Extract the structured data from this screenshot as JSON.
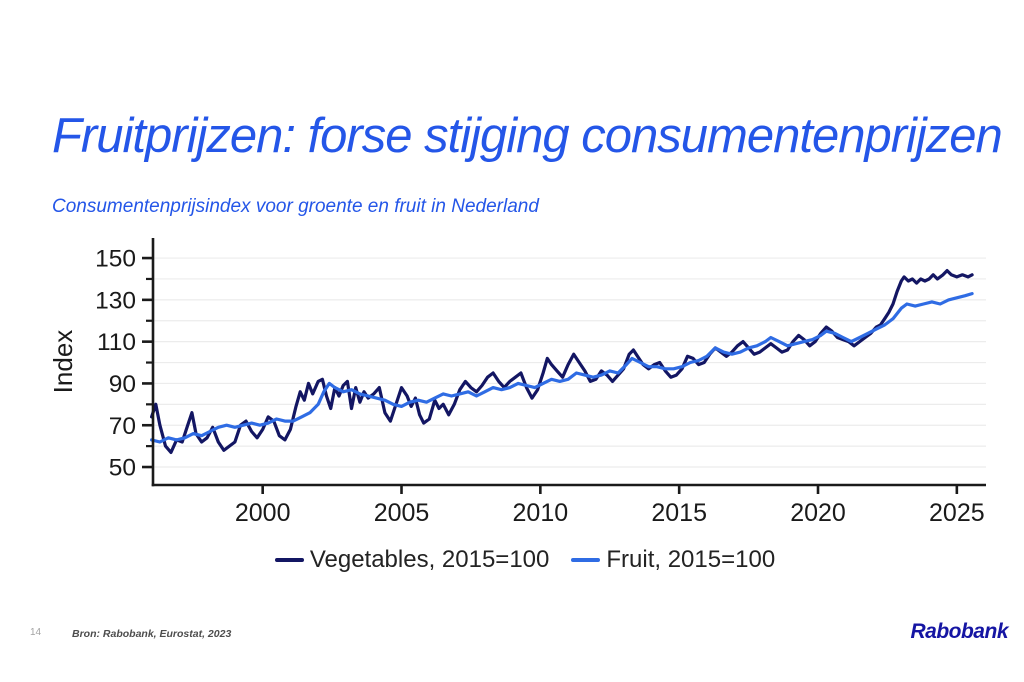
{
  "slide": {
    "title": "Fruitprijzen: forse stijging consumentenprijzen",
    "subtitle": "Consumentenprijsindex voor groente en fruit in Nederland",
    "page_number": "14",
    "source": "Bron: Rabobank, Eurostat, 2023",
    "logo": "Rabobank"
  },
  "colors": {
    "title_blue": "#2456e8",
    "axis": "#1a1a1a",
    "grid": "#ececec",
    "vegetables": "#131663",
    "fruit": "#2f6ce4",
    "logo_blue": "#1515a3"
  },
  "chart_data": {
    "type": "line",
    "title": "",
    "xlabel": "",
    "ylabel": "Index",
    "x_domain": [
      1996.05,
      2026.05
    ],
    "y_domain": [
      41.4,
      159.6
    ],
    "x_ticks": [
      2000,
      2005,
      2010,
      2015,
      2020,
      2025
    ],
    "y_ticks_major": [
      50,
      70,
      90,
      110,
      130,
      150
    ],
    "y_ticks_minor": [
      60,
      80,
      100,
      120,
      140
    ],
    "grid_values": [
      50,
      60,
      70,
      80,
      90,
      100,
      110,
      120,
      130,
      140,
      150
    ],
    "grid": true,
    "legend_position": "bottom",
    "series": [
      {
        "name": "Vegetables, 2015=100",
        "color": "#131663",
        "points": [
          [
            1996.0,
            74
          ],
          [
            1996.15,
            80
          ],
          [
            1996.3,
            70
          ],
          [
            1996.5,
            60
          ],
          [
            1996.7,
            57
          ],
          [
            1996.9,
            63
          ],
          [
            1997.1,
            62
          ],
          [
            1997.3,
            70
          ],
          [
            1997.45,
            76
          ],
          [
            1997.6,
            66
          ],
          [
            1997.8,
            62
          ],
          [
            1998.0,
            64
          ],
          [
            1998.2,
            69
          ],
          [
            1998.4,
            62
          ],
          [
            1998.6,
            58
          ],
          [
            1998.8,
            60
          ],
          [
            1999.0,
            62
          ],
          [
            1999.2,
            70
          ],
          [
            1999.4,
            72
          ],
          [
            1999.6,
            67
          ],
          [
            1999.8,
            64
          ],
          [
            2000.0,
            68
          ],
          [
            2000.2,
            74
          ],
          [
            2000.4,
            72
          ],
          [
            2000.6,
            65
          ],
          [
            2000.8,
            63
          ],
          [
            2001.0,
            68
          ],
          [
            2001.2,
            79
          ],
          [
            2001.35,
            86
          ],
          [
            2001.5,
            82
          ],
          [
            2001.65,
            90
          ],
          [
            2001.8,
            85
          ],
          [
            2002.0,
            91
          ],
          [
            2002.15,
            92
          ],
          [
            2002.3,
            84
          ],
          [
            2002.45,
            78
          ],
          [
            2002.6,
            88
          ],
          [
            2002.75,
            84
          ],
          [
            2002.9,
            89
          ],
          [
            2003.05,
            91
          ],
          [
            2003.2,
            78
          ],
          [
            2003.35,
            88
          ],
          [
            2003.5,
            81
          ],
          [
            2003.65,
            86
          ],
          [
            2003.8,
            83
          ],
          [
            2004.0,
            85
          ],
          [
            2004.2,
            88
          ],
          [
            2004.4,
            76
          ],
          [
            2004.6,
            72
          ],
          [
            2004.8,
            80
          ],
          [
            2005.0,
            88
          ],
          [
            2005.2,
            84
          ],
          [
            2005.35,
            79
          ],
          [
            2005.5,
            83
          ],
          [
            2005.65,
            75
          ],
          [
            2005.8,
            71
          ],
          [
            2006.0,
            73
          ],
          [
            2006.2,
            82
          ],
          [
            2006.35,
            78
          ],
          [
            2006.5,
            80
          ],
          [
            2006.7,
            75
          ],
          [
            2006.9,
            80
          ],
          [
            2007.1,
            87
          ],
          [
            2007.3,
            91
          ],
          [
            2007.5,
            88
          ],
          [
            2007.7,
            86
          ],
          [
            2007.9,
            89
          ],
          [
            2008.1,
            93
          ],
          [
            2008.3,
            95
          ],
          [
            2008.5,
            91
          ],
          [
            2008.7,
            88
          ],
          [
            2008.9,
            91
          ],
          [
            2009.1,
            93
          ],
          [
            2009.3,
            95
          ],
          [
            2009.5,
            88
          ],
          [
            2009.7,
            83
          ],
          [
            2009.9,
            87
          ],
          [
            2010.1,
            95
          ],
          [
            2010.25,
            102
          ],
          [
            2010.4,
            99
          ],
          [
            2010.6,
            96
          ],
          [
            2010.8,
            93
          ],
          [
            2011.0,
            99
          ],
          [
            2011.2,
            104
          ],
          [
            2011.4,
            100
          ],
          [
            2011.6,
            96
          ],
          [
            2011.8,
            91
          ],
          [
            2012.0,
            92
          ],
          [
            2012.2,
            96
          ],
          [
            2012.4,
            94
          ],
          [
            2012.6,
            91
          ],
          [
            2012.8,
            94
          ],
          [
            2013.0,
            97
          ],
          [
            2013.2,
            104
          ],
          [
            2013.35,
            106
          ],
          [
            2013.5,
            103
          ],
          [
            2013.7,
            99
          ],
          [
            2013.9,
            97
          ],
          [
            2014.1,
            99
          ],
          [
            2014.3,
            100
          ],
          [
            2014.5,
            96
          ],
          [
            2014.7,
            93
          ],
          [
            2014.9,
            94
          ],
          [
            2015.1,
            97
          ],
          [
            2015.3,
            103
          ],
          [
            2015.5,
            102
          ],
          [
            2015.7,
            99
          ],
          [
            2015.9,
            100
          ],
          [
            2016.1,
            104
          ],
          [
            2016.3,
            107
          ],
          [
            2016.5,
            105
          ],
          [
            2016.7,
            103
          ],
          [
            2016.9,
            105
          ],
          [
            2017.1,
            108
          ],
          [
            2017.3,
            110
          ],
          [
            2017.5,
            107
          ],
          [
            2017.7,
            104
          ],
          [
            2017.9,
            105
          ],
          [
            2018.1,
            107
          ],
          [
            2018.3,
            109
          ],
          [
            2018.5,
            107
          ],
          [
            2018.7,
            105
          ],
          [
            2018.9,
            106
          ],
          [
            2019.1,
            110
          ],
          [
            2019.3,
            113
          ],
          [
            2019.5,
            111
          ],
          [
            2019.7,
            108
          ],
          [
            2019.9,
            110
          ],
          [
            2020.1,
            114
          ],
          [
            2020.3,
            117
          ],
          [
            2020.5,
            115
          ],
          [
            2020.7,
            112
          ],
          [
            2020.9,
            111
          ],
          [
            2021.1,
            110
          ],
          [
            2021.3,
            108
          ],
          [
            2021.5,
            110
          ],
          [
            2021.7,
            112
          ],
          [
            2021.9,
            114
          ],
          [
            2022.1,
            117
          ],
          [
            2022.25,
            118
          ],
          [
            2022.4,
            121
          ],
          [
            2022.55,
            124
          ],
          [
            2022.7,
            128
          ],
          [
            2022.85,
            134
          ],
          [
            2023.0,
            139
          ],
          [
            2023.1,
            141
          ],
          [
            2023.25,
            139
          ],
          [
            2023.4,
            140
          ],
          [
            2023.55,
            138
          ],
          [
            2023.7,
            140
          ],
          [
            2023.85,
            139
          ],
          [
            2024.0,
            140
          ],
          [
            2024.15,
            142
          ],
          [
            2024.3,
            140
          ],
          [
            2024.5,
            142
          ],
          [
            2024.65,
            144
          ],
          [
            2024.8,
            142
          ],
          [
            2025.0,
            141
          ],
          [
            2025.2,
            142
          ],
          [
            2025.4,
            141
          ],
          [
            2025.55,
            142
          ]
        ]
      },
      {
        "name": "Fruit, 2015=100",
        "color": "#2f6ce4",
        "points": [
          [
            1996.0,
            63
          ],
          [
            1996.3,
            62
          ],
          [
            1996.6,
            64
          ],
          [
            1996.9,
            63
          ],
          [
            1997.2,
            64
          ],
          [
            1997.5,
            66
          ],
          [
            1997.8,
            65
          ],
          [
            1998.1,
            67
          ],
          [
            1998.4,
            69
          ],
          [
            1998.7,
            70
          ],
          [
            1999.0,
            69
          ],
          [
            1999.3,
            70
          ],
          [
            1999.6,
            71
          ],
          [
            1999.9,
            70
          ],
          [
            2000.2,
            71
          ],
          [
            2000.5,
            73
          ],
          [
            2000.8,
            72
          ],
          [
            2001.1,
            72
          ],
          [
            2001.4,
            74
          ],
          [
            2001.7,
            76
          ],
          [
            2002.0,
            80
          ],
          [
            2002.2,
            86
          ],
          [
            2002.4,
            90
          ],
          [
            2002.6,
            88
          ],
          [
            2002.9,
            86
          ],
          [
            2003.2,
            87
          ],
          [
            2003.5,
            85
          ],
          [
            2003.8,
            84
          ],
          [
            2004.1,
            83
          ],
          [
            2004.4,
            82
          ],
          [
            2004.7,
            80
          ],
          [
            2005.0,
            79
          ],
          [
            2005.3,
            81
          ],
          [
            2005.6,
            82
          ],
          [
            2005.9,
            81
          ],
          [
            2006.2,
            83
          ],
          [
            2006.5,
            85
          ],
          [
            2006.8,
            84
          ],
          [
            2007.1,
            85
          ],
          [
            2007.4,
            86
          ],
          [
            2007.7,
            84
          ],
          [
            2008.0,
            86
          ],
          [
            2008.3,
            88
          ],
          [
            2008.6,
            87
          ],
          [
            2008.9,
            88
          ],
          [
            2009.2,
            90
          ],
          [
            2009.5,
            89
          ],
          [
            2009.8,
            88
          ],
          [
            2010.1,
            90
          ],
          [
            2010.4,
            92
          ],
          [
            2010.7,
            91
          ],
          [
            2011.0,
            92
          ],
          [
            2011.3,
            95
          ],
          [
            2011.6,
            94
          ],
          [
            2011.9,
            93
          ],
          [
            2012.2,
            94
          ],
          [
            2012.5,
            96
          ],
          [
            2012.8,
            95
          ],
          [
            2013.1,
            99
          ],
          [
            2013.3,
            102
          ],
          [
            2013.6,
            100
          ],
          [
            2013.9,
            98
          ],
          [
            2014.2,
            98
          ],
          [
            2014.5,
            97
          ],
          [
            2014.8,
            97
          ],
          [
            2015.1,
            98
          ],
          [
            2015.4,
            100
          ],
          [
            2015.7,
            101
          ],
          [
            2016.0,
            103
          ],
          [
            2016.3,
            107
          ],
          [
            2016.6,
            105
          ],
          [
            2016.9,
            104
          ],
          [
            2017.2,
            105
          ],
          [
            2017.5,
            107
          ],
          [
            2017.8,
            108
          ],
          [
            2018.1,
            110
          ],
          [
            2018.3,
            112
          ],
          [
            2018.6,
            110
          ],
          [
            2018.9,
            108
          ],
          [
            2019.2,
            109
          ],
          [
            2019.5,
            110
          ],
          [
            2019.8,
            111
          ],
          [
            2020.1,
            113
          ],
          [
            2020.3,
            115
          ],
          [
            2020.6,
            114
          ],
          [
            2020.9,
            112
          ],
          [
            2021.2,
            110
          ],
          [
            2021.5,
            112
          ],
          [
            2021.8,
            114
          ],
          [
            2022.1,
            116
          ],
          [
            2022.4,
            118
          ],
          [
            2022.7,
            121
          ],
          [
            2023.0,
            126
          ],
          [
            2023.2,
            128
          ],
          [
            2023.5,
            127
          ],
          [
            2023.8,
            128
          ],
          [
            2024.1,
            129
          ],
          [
            2024.4,
            128
          ],
          [
            2024.7,
            130
          ],
          [
            2025.0,
            131
          ],
          [
            2025.3,
            132
          ],
          [
            2025.55,
            133
          ]
        ]
      }
    ]
  }
}
